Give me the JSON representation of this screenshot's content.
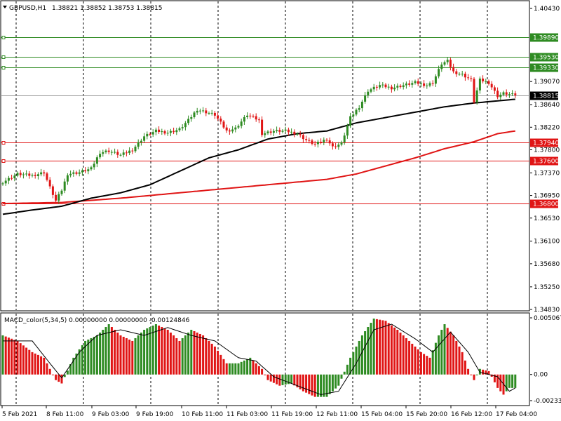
{
  "header": {
    "symbol": "GBPUSD,H1",
    "ohlc": "1.38821 1.38852 1.38753 1.38815"
  },
  "colors": {
    "bull": "#2e8b22",
    "bear": "#e01515",
    "ma_fast": "#000000",
    "ma_slow": "#e01515",
    "line_green": "#2e8b22",
    "line_red": "#e01515",
    "grid": "#000000",
    "current": "#999999"
  },
  "chart_data": [
    {
      "type": "candlestick",
      "title": "GBPUSD,H1",
      "ylim": [
        1.3483,
        1.4043
      ],
      "price_ticks": [
        "1.40430",
        "1.39070",
        "1.38640",
        "1.38220",
        "1.37800",
        "1.37370",
        "1.36950",
        "1.36530",
        "1.36100",
        "1.35680",
        "1.35250",
        "1.34830"
      ],
      "x_ticks": [
        "5 Feb 2021",
        "8 Feb 11:00",
        "9 Feb 03:00",
        "9 Feb 19:00",
        "10 Feb 11:00",
        "11 Feb 03:00",
        "11 Feb 19:00",
        "12 Feb 11:00",
        "15 Feb 04:00",
        "15 Feb 20:00",
        "16 Feb 12:00",
        "17 Feb 04:00"
      ],
      "close_anchors": [
        [
          0,
          1.372
        ],
        [
          5,
          1.3735
        ],
        [
          10,
          1.3732
        ],
        [
          14,
          1.3738
        ],
        [
          16,
          1.371
        ],
        [
          18,
          1.3685
        ],
        [
          20,
          1.3705
        ],
        [
          22,
          1.3735
        ],
        [
          26,
          1.3738
        ],
        [
          30,
          1.3745
        ],
        [
          33,
          1.3775
        ],
        [
          36,
          1.3778
        ],
        [
          40,
          1.377
        ],
        [
          44,
          1.378
        ],
        [
          48,
          1.3805
        ],
        [
          52,
          1.3815
        ],
        [
          56,
          1.3812
        ],
        [
          60,
          1.3818
        ],
        [
          63,
          1.3835
        ],
        [
          66,
          1.3855
        ],
        [
          69,
          1.385
        ],
        [
          72,
          1.3845
        ],
        [
          76,
          1.3815
        ],
        [
          79,
          1.382
        ],
        [
          83,
          1.3845
        ],
        [
          87,
          1.3835
        ],
        [
          88,
          1.381
        ],
        [
          92,
          1.3815
        ],
        [
          96,
          1.3815
        ],
        [
          100,
          1.381
        ],
        [
          103,
          1.3798
        ],
        [
          106,
          1.379
        ],
        [
          110,
          1.38
        ],
        [
          112,
          1.3785
        ],
        [
          115,
          1.3792
        ],
        [
          118,
          1.384
        ],
        [
          121,
          1.386
        ],
        [
          124,
          1.389
        ],
        [
          128,
          1.39
        ],
        [
          132,
          1.3895
        ],
        [
          136,
          1.39
        ],
        [
          140,
          1.3905
        ],
        [
          144,
          1.39
        ],
        [
          146,
          1.3905
        ],
        [
          149,
          1.394
        ],
        [
          151,
          1.3945
        ],
        [
          153,
          1.3925
        ],
        [
          156,
          1.392
        ],
        [
          159,
          1.391
        ],
        [
          160,
          1.387
        ],
        [
          162,
          1.391
        ],
        [
          165,
          1.3905
        ],
        [
          168,
          1.388
        ],
        [
          170,
          1.3885
        ],
        [
          174,
          1.38815
        ]
      ],
      "last_close": 1.38815,
      "levels": [
        {
          "label": "1.39890",
          "value": 1.3989,
          "color": "green"
        },
        {
          "label": "1.39530",
          "value": 1.3953,
          "color": "green"
        },
        {
          "label": "1.39330",
          "value": 1.3933,
          "color": "green"
        },
        {
          "label": "1.37940",
          "value": 1.3794,
          "color": "red"
        },
        {
          "label": "1.37600",
          "value": 1.376,
          "color": "red"
        },
        {
          "label": "1.36800",
          "value": 1.368,
          "color": "red"
        }
      ],
      "ma_fast": [
        [
          0,
          1.366
        ],
        [
          10,
          1.3668
        ],
        [
          20,
          1.3675
        ],
        [
          30,
          1.369
        ],
        [
          40,
          1.37
        ],
        [
          50,
          1.3715
        ],
        [
          60,
          1.374
        ],
        [
          70,
          1.3765
        ],
        [
          80,
          1.378
        ],
        [
          90,
          1.38
        ],
        [
          100,
          1.381
        ],
        [
          110,
          1.3815
        ],
        [
          120,
          1.383
        ],
        [
          130,
          1.384
        ],
        [
          140,
          1.385
        ],
        [
          150,
          1.386
        ],
        [
          160,
          1.3867
        ],
        [
          174,
          1.3874
        ]
      ],
      "ma_slow": [
        [
          0,
          1.368
        ],
        [
          20,
          1.3682
        ],
        [
          40,
          1.369
        ],
        [
          60,
          1.37
        ],
        [
          80,
          1.371
        ],
        [
          100,
          1.372
        ],
        [
          110,
          1.3725
        ],
        [
          120,
          1.3735
        ],
        [
          130,
          1.375
        ],
        [
          140,
          1.3765
        ],
        [
          150,
          1.3782
        ],
        [
          160,
          1.3795
        ],
        [
          168,
          1.381
        ],
        [
          174,
          1.3815
        ]
      ]
    },
    {
      "type": "bar",
      "title": "MACD_color(5,34,5) 0.00000000 0.00000000 -0.00124846",
      "ylim": [
        -0.002338,
        0.0050671
      ],
      "tick_labels": [
        "0.0050671",
        "0.00",
        "-0.002338"
      ],
      "anchors": [
        [
          0,
          0.0035
        ],
        [
          5,
          0.003
        ],
        [
          10,
          0.002
        ],
        [
          14,
          0.0015
        ],
        [
          18,
          -0.0005
        ],
        [
          20,
          -0.0008
        ],
        [
          24,
          0.0015
        ],
        [
          28,
          0.003
        ],
        [
          32,
          0.0035
        ],
        [
          36,
          0.0045
        ],
        [
          40,
          0.0035
        ],
        [
          44,
          0.003
        ],
        [
          48,
          0.004
        ],
        [
          52,
          0.0045
        ],
        [
          56,
          0.004
        ],
        [
          60,
          0.003
        ],
        [
          64,
          0.004
        ],
        [
          68,
          0.0035
        ],
        [
          72,
          0.0025
        ],
        [
          76,
          0.001
        ],
        [
          80,
          0.001
        ],
        [
          84,
          0.0015
        ],
        [
          88,
          0.0005
        ],
        [
          90,
          -0.0005
        ],
        [
          94,
          -0.001
        ],
        [
          98,
          -0.0008
        ],
        [
          102,
          -0.0015
        ],
        [
          106,
          -0.002
        ],
        [
          110,
          -0.002
        ],
        [
          114,
          -0.001
        ],
        [
          118,
          0.0015
        ],
        [
          122,
          0.0035
        ],
        [
          126,
          0.005
        ],
        [
          130,
          0.0048
        ],
        [
          134,
          0.004
        ],
        [
          138,
          0.003
        ],
        [
          142,
          0.002
        ],
        [
          145,
          0.0015
        ],
        [
          148,
          0.0035
        ],
        [
          150,
          0.0045
        ],
        [
          153,
          0.0035
        ],
        [
          156,
          0.002
        ],
        [
          158,
          0.0005
        ],
        [
          160,
          -0.0005
        ],
        [
          162,
          0.0005
        ],
        [
          165,
          0.0003
        ],
        [
          168,
          -0.0012
        ],
        [
          170,
          -0.0018
        ],
        [
          172,
          -0.0012
        ],
        [
          174,
          -0.0012
        ]
      ],
      "signal": [
        [
          0,
          0.003
        ],
        [
          10,
          0.003
        ],
        [
          16,
          0.001
        ],
        [
          20,
          -0.0003
        ],
        [
          26,
          0.002
        ],
        [
          32,
          0.0035
        ],
        [
          40,
          0.004
        ],
        [
          48,
          0.0035
        ],
        [
          56,
          0.0042
        ],
        [
          64,
          0.0035
        ],
        [
          72,
          0.003
        ],
        [
          80,
          0.0015
        ],
        [
          86,
          0.0012
        ],
        [
          92,
          -0.0002
        ],
        [
          100,
          -0.001
        ],
        [
          108,
          -0.0018
        ],
        [
          114,
          -0.0015
        ],
        [
          120,
          0.001
        ],
        [
          126,
          0.004
        ],
        [
          132,
          0.0045
        ],
        [
          140,
          0.0032
        ],
        [
          146,
          0.002
        ],
        [
          152,
          0.0038
        ],
        [
          158,
          0.002
        ],
        [
          162,
          0.0002
        ],
        [
          168,
          -0.0002
        ],
        [
          172,
          -0.0015
        ],
        [
          174,
          -0.0012
        ]
      ]
    }
  ]
}
